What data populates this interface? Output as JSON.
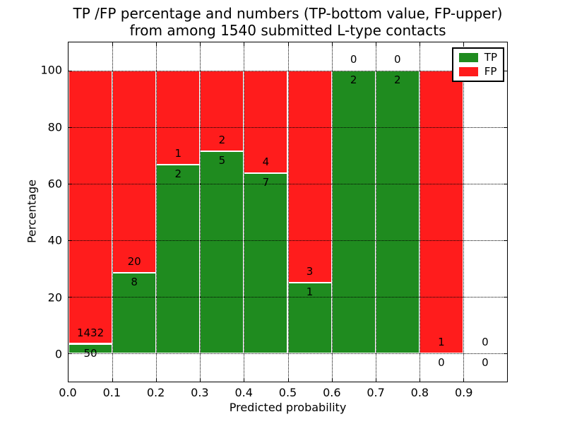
{
  "title": {
    "line1": "TP /FP percentage and numbers (TP-bottom value, FP-upper)",
    "line2": "from among 1540 submitted L-type contacts"
  },
  "axes": {
    "xlabel": "Predicted probability",
    "ylabel": "Percentage",
    "x_tick_labels": [
      "0.0",
      "0.1",
      "0.2",
      "0.3",
      "0.4",
      "0.5",
      "0.6",
      "0.7",
      "0.8",
      "0.9"
    ],
    "y_tick_labels": [
      "0",
      "20",
      "40",
      "60",
      "80",
      "100"
    ],
    "xlim": [
      0.0,
      1.0
    ],
    "ylim": [
      -10,
      110
    ],
    "grid_style": "dotted"
  },
  "legend": {
    "position": "upper right",
    "entries": [
      {
        "label": "TP",
        "color": "#1f8b1f"
      },
      {
        "label": "FP",
        "color": "#ff1c1c"
      }
    ]
  },
  "chart_data": {
    "type": "bar",
    "stacked": true,
    "normalized_to_percent": true,
    "bin_width": 0.1,
    "bin_starts": [
      0.0,
      0.1,
      0.2,
      0.3,
      0.4,
      0.5,
      0.6,
      0.7,
      0.8,
      0.9
    ],
    "series": [
      {
        "name": "TP",
        "color": "#1f8b1f",
        "counts": [
          50,
          8,
          2,
          5,
          7,
          1,
          2,
          2,
          0,
          0
        ],
        "label_position": "bottom"
      },
      {
        "name": "FP",
        "color": "#ff1c1c",
        "counts": [
          1432,
          20,
          1,
          2,
          4,
          3,
          0,
          0,
          1,
          0
        ],
        "label_position": "upper"
      }
    ],
    "tp_percent_per_bin": [
      3.4,
      28.6,
      66.7,
      71.4,
      63.6,
      25.0,
      100.0,
      100.0,
      0.0,
      null
    ],
    "total_contacts": 1540,
    "title": "TP /FP percentage and numbers (TP-bottom value, FP-upper) from among 1540 submitted L-type contacts",
    "xlabel": "Predicted probability",
    "ylabel": "Percentage"
  },
  "colors": {
    "tp": "#1f8b1f",
    "fp": "#ff1c1c",
    "bar_edge": "#ffffff",
    "grid": "#000000",
    "axis": "#000000",
    "background": "#ffffff"
  }
}
